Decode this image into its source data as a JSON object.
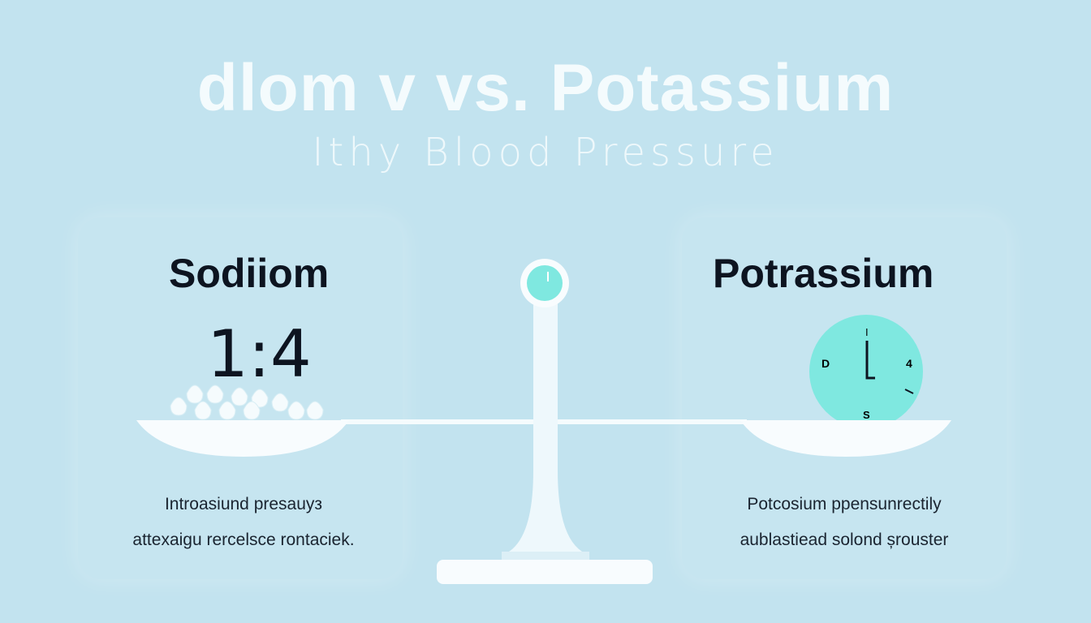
{
  "title": "dlom v vs.  Potassium",
  "subtitle": "Ithy Blood Pressure",
  "left": {
    "heading": "Sodiiom",
    "ratio": "1:4",
    "desc_line1": "Introasiund presauyз",
    "desc_line2": "attexaigu rercelsce rontaciek."
  },
  "right": {
    "heading": "Potrassium",
    "desc_line1": "Potcosium ppensunrectily",
    "desc_line2": "aublastiead solond șrouster",
    "clock": {
      "top": "I",
      "left": "D",
      "right": "4",
      "bottom": "S"
    }
  },
  "colors": {
    "background": "#c2e3ef",
    "accent": "#7fe8e0",
    "text": "#0d1420"
  }
}
